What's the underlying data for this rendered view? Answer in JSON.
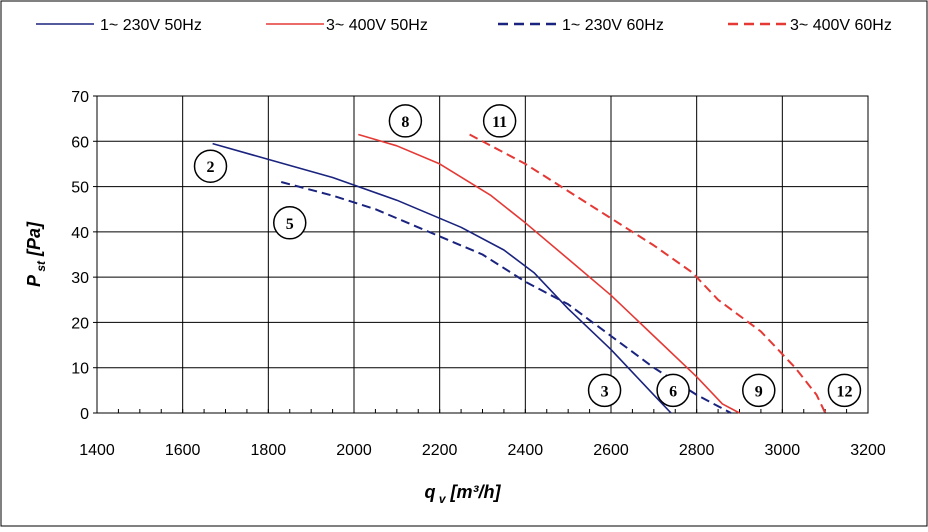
{
  "chart_data": {
    "type": "line",
    "xlabel": "q",
    "xlabel_sub": "v",
    "xlabel_unit": "[m³/h]",
    "ylabel": "P",
    "ylabel_sub": "st",
    "ylabel_unit": "[Pa]",
    "xlim": [
      1400,
      3200
    ],
    "ylim": [
      0,
      70
    ],
    "xticks": [
      1400,
      1600,
      1800,
      2000,
      2200,
      2400,
      2600,
      2800,
      3000,
      3200
    ],
    "yticks": [
      0,
      10,
      20,
      30,
      40,
      50,
      60,
      70
    ],
    "grid": true,
    "legend_position": "top",
    "series": [
      {
        "name": "1~ 230V 50Hz",
        "color": "#1a237e",
        "dash": "solid",
        "points": [
          [
            1670,
            59.5
          ],
          [
            1800,
            56
          ],
          [
            1950,
            52
          ],
          [
            2100,
            47
          ],
          [
            2250,
            41
          ],
          [
            2350,
            36
          ],
          [
            2420,
            31
          ],
          [
            2500,
            23
          ],
          [
            2600,
            14
          ],
          [
            2700,
            4
          ],
          [
            2740,
            0
          ]
        ]
      },
      {
        "name": "3~ 400V 50Hz",
        "color": "#e53935",
        "dash": "solid",
        "points": [
          [
            2010,
            61.5
          ],
          [
            2100,
            59
          ],
          [
            2200,
            55
          ],
          [
            2320,
            48
          ],
          [
            2400,
            42
          ],
          [
            2500,
            34
          ],
          [
            2600,
            26
          ],
          [
            2700,
            17
          ],
          [
            2800,
            8
          ],
          [
            2860,
            2
          ],
          [
            2900,
            0
          ]
        ]
      },
      {
        "name": "1~ 230V 60Hz",
        "color": "#1a237e",
        "dash": "dashed",
        "points": [
          [
            1830,
            51
          ],
          [
            1950,
            48
          ],
          [
            2050,
            45
          ],
          [
            2200,
            39
          ],
          [
            2300,
            35
          ],
          [
            2400,
            29
          ],
          [
            2500,
            24
          ],
          [
            2600,
            17
          ],
          [
            2700,
            10
          ],
          [
            2800,
            4
          ],
          [
            2880,
            0
          ]
        ]
      },
      {
        "name": "3~ 400V 60Hz",
        "color": "#e53935",
        "dash": "dashed",
        "points": [
          [
            2270,
            61.5
          ],
          [
            2400,
            55
          ],
          [
            2500,
            49
          ],
          [
            2600,
            43
          ],
          [
            2700,
            37
          ],
          [
            2790,
            31
          ],
          [
            2850,
            25
          ],
          [
            2950,
            18
          ],
          [
            3030,
            10
          ],
          [
            3080,
            4
          ],
          [
            3100,
            0
          ]
        ]
      }
    ],
    "annotations": [
      {
        "label": "2",
        "x": 1665,
        "y": 54.5
      },
      {
        "label": "5",
        "x": 1850,
        "y": 42
      },
      {
        "label": "8",
        "x": 2120,
        "y": 64.5
      },
      {
        "label": "11",
        "x": 2340,
        "y": 64.5
      },
      {
        "label": "3",
        "x": 2585,
        "y": 5
      },
      {
        "label": "6",
        "x": 2745,
        "y": 5
      },
      {
        "label": "9",
        "x": 2945,
        "y": 5
      },
      {
        "label": "12",
        "x": 3145,
        "y": 5
      }
    ]
  }
}
